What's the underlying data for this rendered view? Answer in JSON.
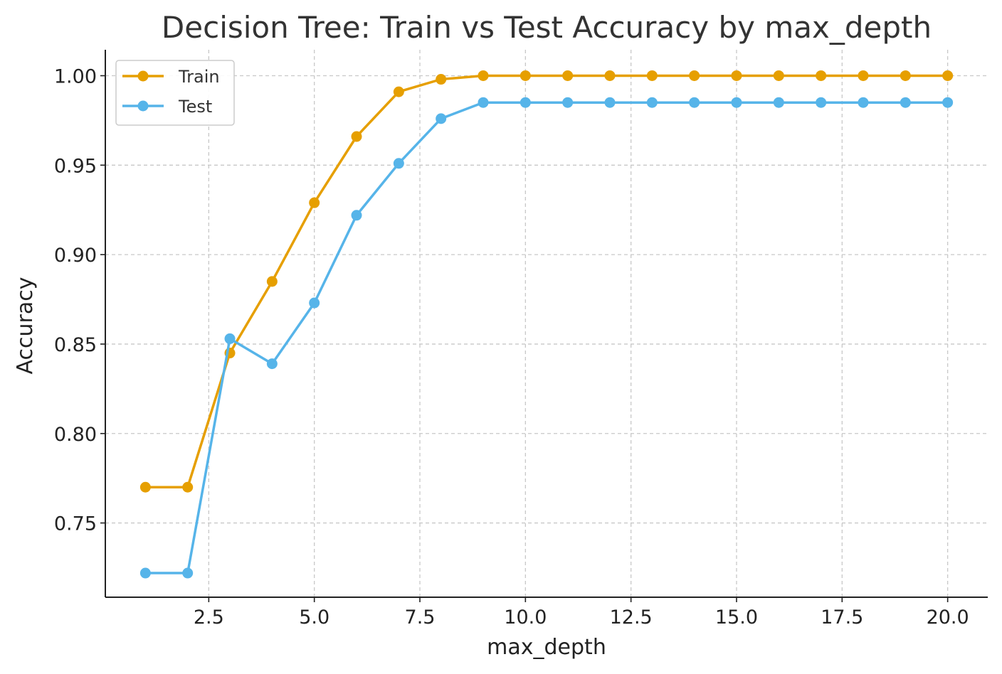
{
  "chart_data": {
    "type": "line",
    "title": "Decision Tree: Train vs Test Accuracy by max_depth",
    "xlabel": "max_depth",
    "ylabel": "Accuracy",
    "x": [
      1,
      2,
      3,
      4,
      5,
      6,
      7,
      8,
      9,
      10,
      11,
      12,
      13,
      14,
      15,
      16,
      17,
      18,
      19,
      20
    ],
    "series": [
      {
        "name": "Train",
        "color": "#E69F00",
        "values": [
          0.77,
          0.77,
          0.845,
          0.885,
          0.929,
          0.966,
          0.991,
          0.998,
          1.0,
          1.0,
          1.0,
          1.0,
          1.0,
          1.0,
          1.0,
          1.0,
          1.0,
          1.0,
          1.0,
          1.0
        ]
      },
      {
        "name": "Test",
        "color": "#56B4E9",
        "values": [
          0.722,
          0.722,
          0.853,
          0.839,
          0.873,
          0.922,
          0.951,
          0.976,
          0.985,
          0.985,
          0.985,
          0.985,
          0.985,
          0.985,
          0.985,
          0.985,
          0.985,
          0.985,
          0.985,
          0.985
        ]
      }
    ],
    "xlim": [
      0.05,
      20.95
    ],
    "ylim": [
      0.7085,
      1.0145
    ],
    "x_ticks": [
      "2.5",
      "5.0",
      "7.5",
      "10.0",
      "12.5",
      "15.0",
      "17.5",
      "20.0"
    ],
    "y_ticks": [
      "0.75",
      "0.80",
      "0.85",
      "0.90",
      "0.95",
      "1.00"
    ],
    "grid": true,
    "legend_position": "upper-left"
  }
}
